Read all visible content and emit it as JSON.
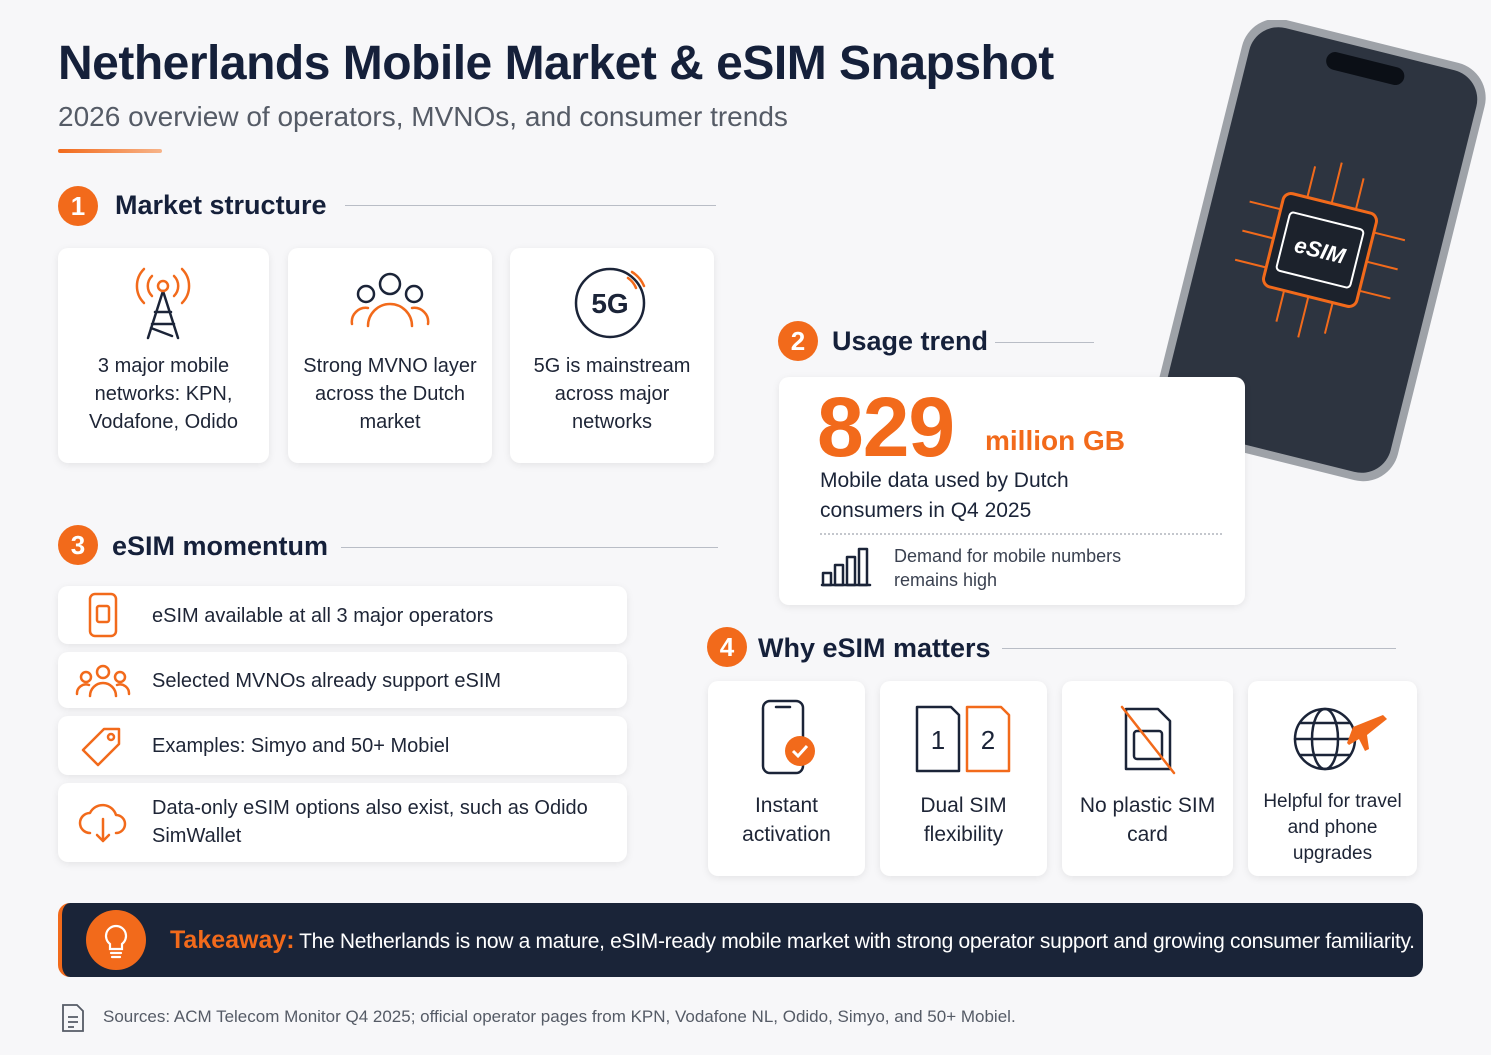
{
  "header": {
    "title": "Netherlands Mobile Market & eSIM Snapshot",
    "subtitle": "2026 overview of operators, MVNOs, and consumer trends"
  },
  "phone_chip": "eSIM",
  "market": {
    "number": 1,
    "heading": "Market structure",
    "icon_text": "5G",
    "cards": [
      "3 major mobile networks: KPN, Vodafone, Odido",
      "Strong MVNO layer across the Dutch market",
      "5G is mainstream across major networks"
    ]
  },
  "usage": {
    "number": 2,
    "heading": "Usage trend",
    "value": 829,
    "unit": "million GB",
    "description": "Mobile data used by Dutch consumers in Q4 2025",
    "note": "Demand for mobile numbers remains high"
  },
  "momentum": {
    "number": 3,
    "heading": "eSIM momentum",
    "items": [
      "eSIM available at all 3 major operators",
      "Selected MVNOs already support eSIM",
      "Examples: Simyo and 50+ Mobiel",
      "Data-only eSIM options also exist, such as Odido SimWallet"
    ]
  },
  "why": {
    "number": 4,
    "heading": "Why eSIM matters",
    "sim_labels": [
      1,
      2
    ],
    "items": [
      "Instant activation",
      "Dual SIM flexibility",
      "No plastic SIM card",
      "Helpful for travel and phone upgrades"
    ]
  },
  "takeaway": {
    "label": "Takeaway:",
    "text": "The Netherlands is now a mature, eSIM-ready mobile market with strong operator support and growing consumer familiarity."
  },
  "sources": "Sources: ACM Telecom Monitor Q4 2025; official operator pages from KPN, Vodafone NL, Odido, Simyo, and 50+ Mobiel."
}
